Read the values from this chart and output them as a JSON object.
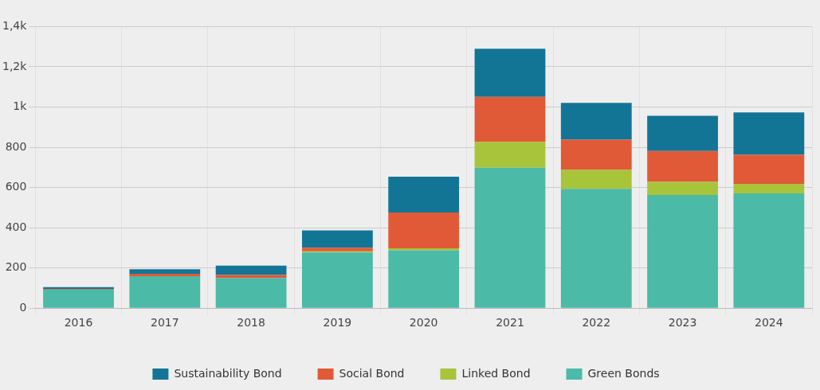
{
  "chart_data": {
    "type": "bar",
    "stacked": true,
    "categories": [
      "2016",
      "2017",
      "2018",
      "2019",
      "2020",
      "2021",
      "2022",
      "2023",
      "2024"
    ],
    "series": [
      {
        "name": "Green Bonds",
        "color": "#4bbaa6",
        "values": [
          92,
          159,
          150,
          277,
          288,
          698,
          593,
          563,
          571
        ]
      },
      {
        "name": "Linked Bond",
        "color": "#a8c43a",
        "values": [
          0,
          0,
          0,
          6,
          10,
          129,
          94,
          65,
          47
        ]
      },
      {
        "name": "Social Bond",
        "color": "#e05a38",
        "values": [
          3,
          12,
          15,
          18,
          178,
          223,
          151,
          153,
          145
        ]
      },
      {
        "name": "Sustainability Bond",
        "color": "#137595",
        "values": [
          10,
          23,
          47,
          86,
          178,
          240,
          183,
          175,
          210
        ]
      }
    ],
    "ylim": [
      0,
      1400
    ],
    "yticks": [
      0,
      200,
      400,
      600,
      800,
      {
        "value": 1000,
        "label": "1k"
      },
      {
        "value": 1200,
        "label": "1,2k"
      },
      {
        "value": 1400,
        "label": "1,4k"
      }
    ],
    "grid": true,
    "legend": "bottom"
  }
}
